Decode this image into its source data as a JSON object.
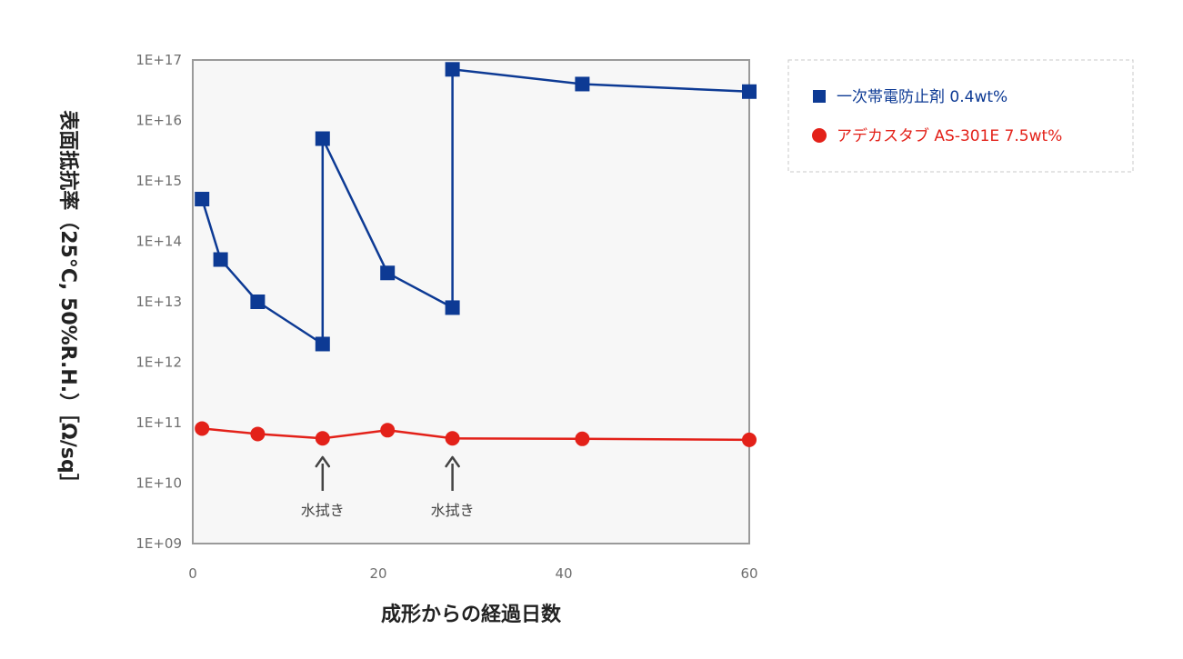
{
  "chart_data": {
    "type": "line",
    "title": "",
    "xlabel": "成形からの経過日数",
    "ylabel": "表面抵抗率（25°C, 50%R.H.）［Ω/sq］",
    "xlim": [
      0,
      60
    ],
    "xticks": [
      0,
      20,
      40,
      60
    ],
    "ylim": [
      1000000000.0,
      1e+17
    ],
    "yscale": "log",
    "yticks": [
      {
        "value": 1000000000.0,
        "label": "1E+09"
      },
      {
        "value": 10000000000.0,
        "label": "1E+10"
      },
      {
        "value": 100000000000.0,
        "label": "1E+11"
      },
      {
        "value": 1000000000000.0,
        "label": "1E+12"
      },
      {
        "value": 10000000000000.0,
        "label": "1E+13"
      },
      {
        "value": 100000000000000.0,
        "label": "1E+14"
      },
      {
        "value": 1000000000000000.0,
        "label": "1E+15"
      },
      {
        "value": 1e+16,
        "label": "1E+16"
      },
      {
        "value": 1e+17,
        "label": "1E+17"
      }
    ],
    "grid": false,
    "legend_position": "right",
    "series": [
      {
        "name": "一次帯電防止剤 0.4wt%",
        "color": "#0d3a94",
        "marker": "square",
        "points": [
          {
            "x": 1,
            "y": 500000000000000.0
          },
          {
            "x": 3,
            "y": 50000000000000.0
          },
          {
            "x": 7,
            "y": 10000000000000.0
          },
          {
            "x": 14,
            "y": 2000000000000.0
          },
          {
            "x": 14,
            "y": 5000000000000000.0
          },
          {
            "x": 21,
            "y": 30000000000000.0
          },
          {
            "x": 28,
            "y": 8000000000000.0
          },
          {
            "x": 28,
            "y": 7e+16
          },
          {
            "x": 42,
            "y": 4e+16
          },
          {
            "x": 60,
            "y": 3e+16
          }
        ]
      },
      {
        "name": "アデカスタブ AS-301E 7.5wt%",
        "color": "#e32119",
        "marker": "circle",
        "points": [
          {
            "x": 1,
            "y": 80000000000.0
          },
          {
            "x": 7,
            "y": 65000000000.0
          },
          {
            "x": 14,
            "y": 55000000000.0
          },
          {
            "x": 21,
            "y": 75000000000.0
          },
          {
            "x": 28,
            "y": 55000000000.0
          },
          {
            "x": 42,
            "y": 54000000000.0
          },
          {
            "x": 60,
            "y": 52000000000.0
          }
        ]
      }
    ],
    "annotations": [
      {
        "x": 14,
        "text": "水拭き"
      },
      {
        "x": 28,
        "text": "水拭き"
      }
    ]
  }
}
